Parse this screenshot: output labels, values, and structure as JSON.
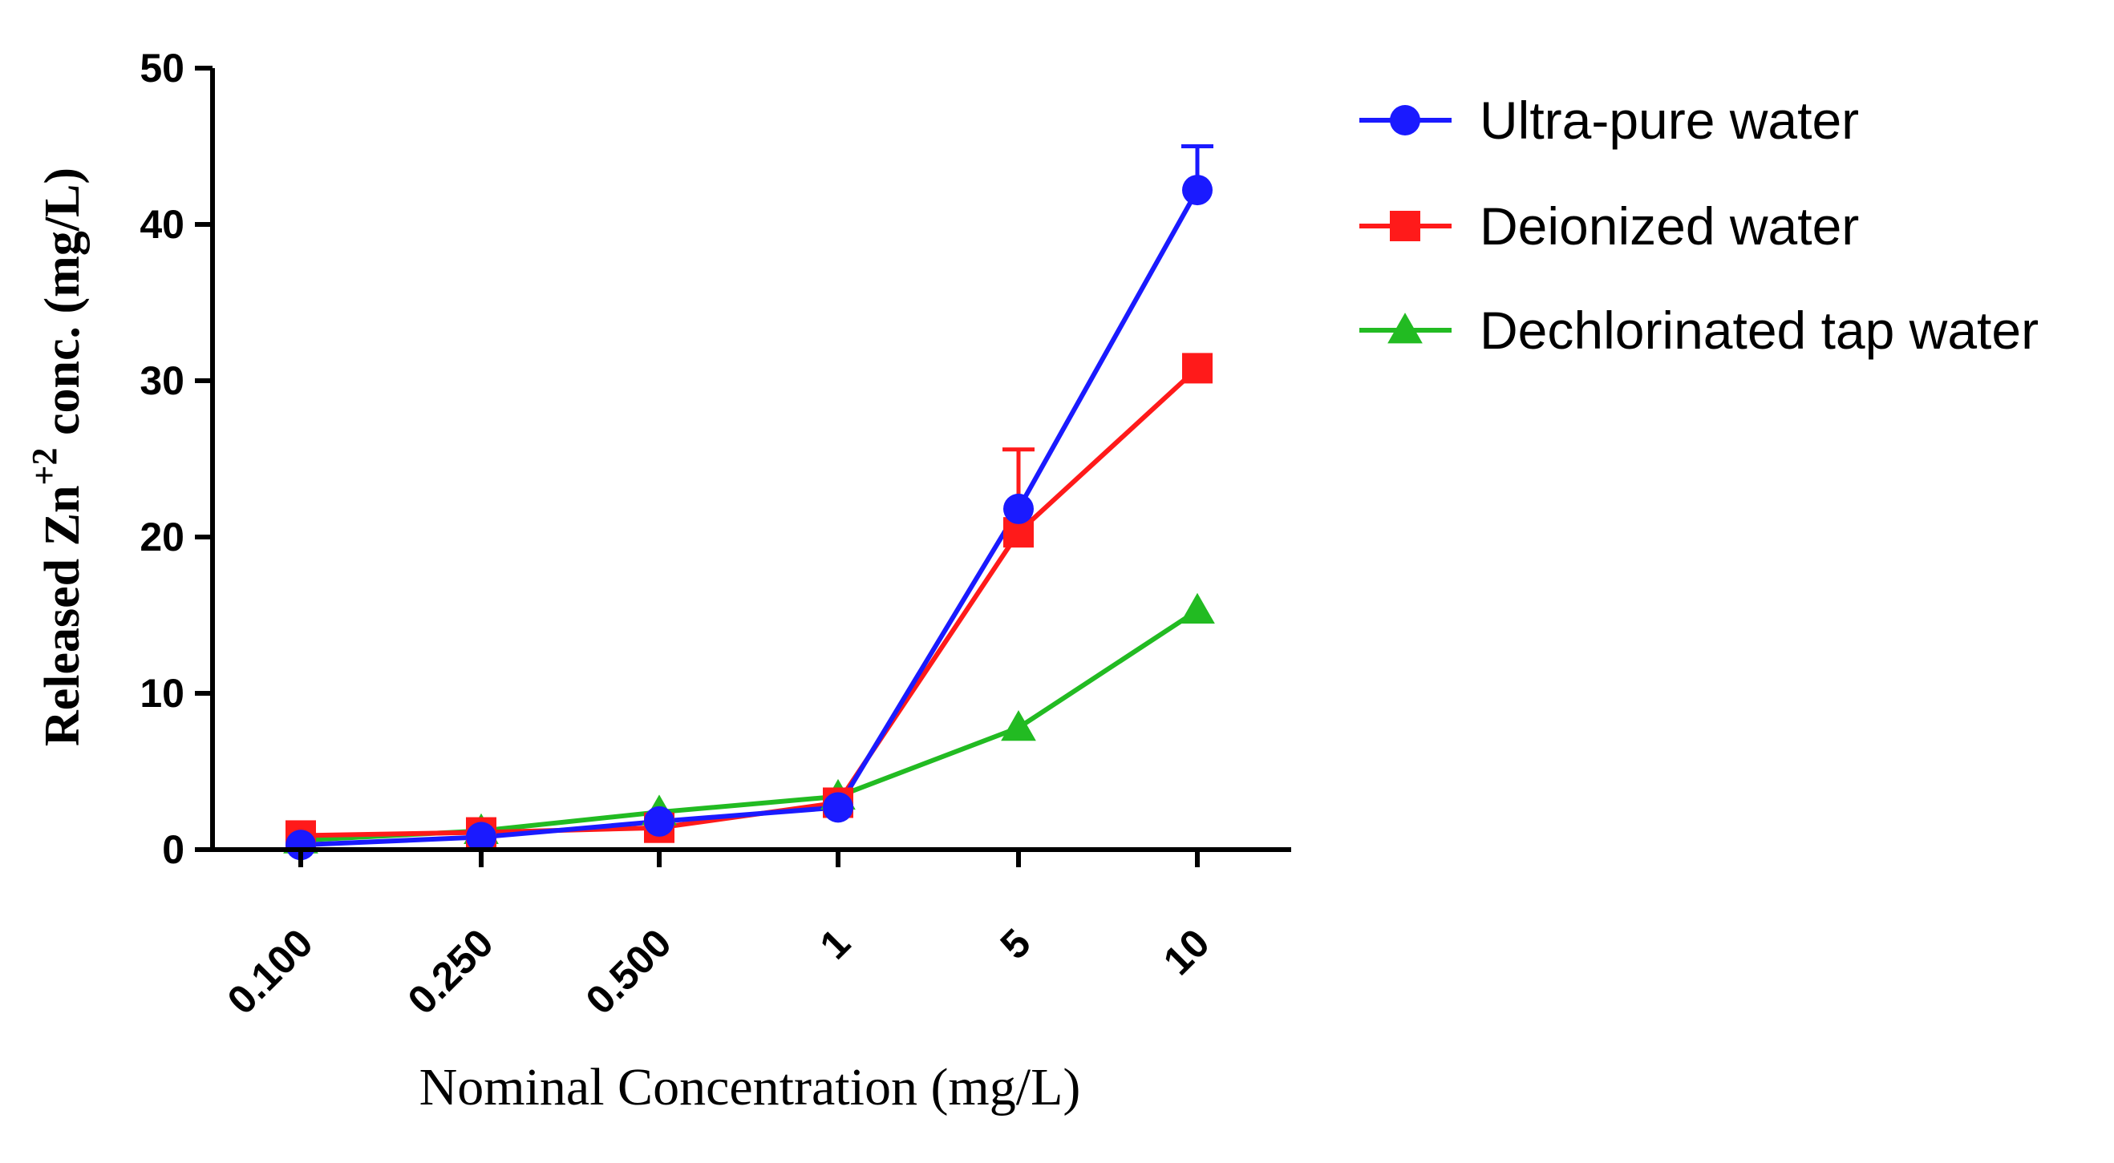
{
  "chart_data": {
    "type": "line",
    "title": "",
    "xlabel": "Nominal Concentration (mg/L)",
    "ylabel": {
      "prefix": "Released Zn",
      "superscript": "+2",
      "suffix": " conc. (mg/L)"
    },
    "categories": [
      "0.100",
      "0.250",
      "0.500",
      "1",
      "5",
      "10"
    ],
    "ylim": [
      0,
      50
    ],
    "yticks": [
      0,
      10,
      20,
      30,
      40,
      50
    ],
    "legend_position": "top-right",
    "series": [
      {
        "name": "Dechlorinated tap water",
        "color": "#22bb22",
        "marker": "triangle",
        "values": [
          0.6,
          1.2,
          2.4,
          3.4,
          7.8,
          15.3
        ]
      },
      {
        "name": "Deionized water",
        "color": "#ff1a1a",
        "marker": "square",
        "values": [
          0.9,
          1.1,
          1.4,
          3.0,
          20.3,
          30.8
        ],
        "errors": [
          0,
          0,
          0,
          0,
          5.3,
          0
        ]
      },
      {
        "name": "Ultra-pure water",
        "color": "#1a1aff",
        "marker": "circle",
        "values": [
          0.3,
          0.8,
          1.8,
          2.7,
          21.8,
          42.2
        ],
        "errors": [
          0,
          0,
          0,
          0,
          0,
          2.8
        ]
      }
    ],
    "legend_order": [
      "Ultra-pure water",
      "Deionized water",
      "Dechlorinated tap water"
    ]
  }
}
